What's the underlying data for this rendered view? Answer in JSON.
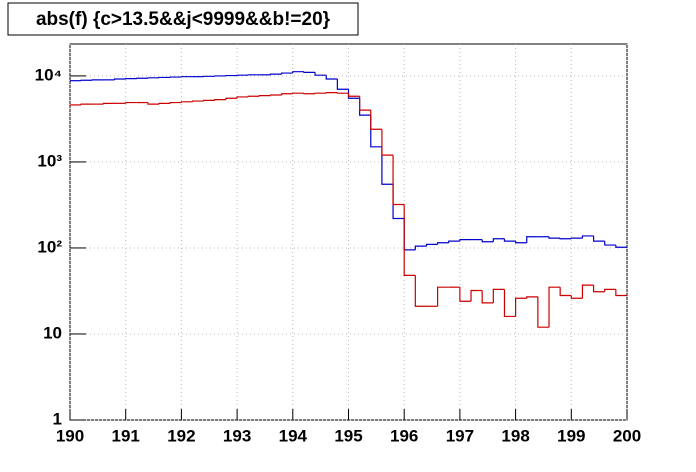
{
  "chart_data": {
    "type": "histogram",
    "title": "abs(f) {c>13.5&&j<9999&&b!=20}",
    "bins": [
      190,
      190.2,
      190.4,
      190.6,
      190.8,
      191,
      191.2,
      191.4,
      191.6,
      191.8,
      192,
      192.2,
      192.4,
      192.6,
      192.8,
      193,
      193.2,
      193.4,
      193.6,
      193.8,
      194,
      194.2,
      194.4,
      194.6,
      194.8,
      195,
      195.2,
      195.4,
      195.6,
      195.8,
      196,
      196.2,
      196.4,
      196.6,
      196.8,
      197,
      197.2,
      197.4,
      197.6,
      197.8,
      198,
      198.2,
      198.4,
      198.6,
      198.8,
      199,
      199.2,
      199.4,
      199.6,
      199.8,
      200
    ],
    "series": [
      {
        "color": "#0000cc",
        "values": [
          8800,
          8900,
          9000,
          9000,
          9200,
          9300,
          9400,
          9500,
          9600,
          9700,
          9800,
          9800,
          9900,
          10000,
          10100,
          10200,
          10300,
          10300,
          10500,
          10800,
          11200,
          11000,
          10200,
          9200,
          7000,
          5500,
          3500,
          1500,
          550,
          220,
          95,
          105,
          110,
          115,
          120,
          125,
          125,
          118,
          128,
          120,
          115,
          135,
          135,
          130,
          128,
          130,
          138,
          120,
          108,
          102
        ]
      },
      {
        "color": "#cc0000",
        "values": [
          4600,
          4700,
          4700,
          4800,
          4800,
          4900,
          4900,
          4700,
          4800,
          4900,
          5000,
          5100,
          5200,
          5300,
          5500,
          5700,
          5800,
          5900,
          6000,
          6200,
          6300,
          6200,
          6300,
          6400,
          6300,
          5800,
          4000,
          2400,
          1200,
          320,
          48,
          21,
          21,
          35,
          35,
          24,
          32,
          23,
          33,
          16,
          26,
          27,
          12,
          35,
          28,
          26,
          37,
          31,
          33,
          28
        ]
      }
    ],
    "xlim": [
      190,
      200
    ],
    "xticks": [
      190,
      191,
      192,
      193,
      194,
      195,
      196,
      197,
      198,
      199,
      200
    ],
    "ylim": [
      1,
      23500
    ],
    "log_y": true,
    "yticks": [
      1,
      10,
      {
        "value": 100,
        "label": "10²"
      },
      {
        "value": 1000,
        "label": "10³"
      },
      {
        "value": 10000,
        "label": "10⁴"
      }
    ],
    "grid": true
  }
}
